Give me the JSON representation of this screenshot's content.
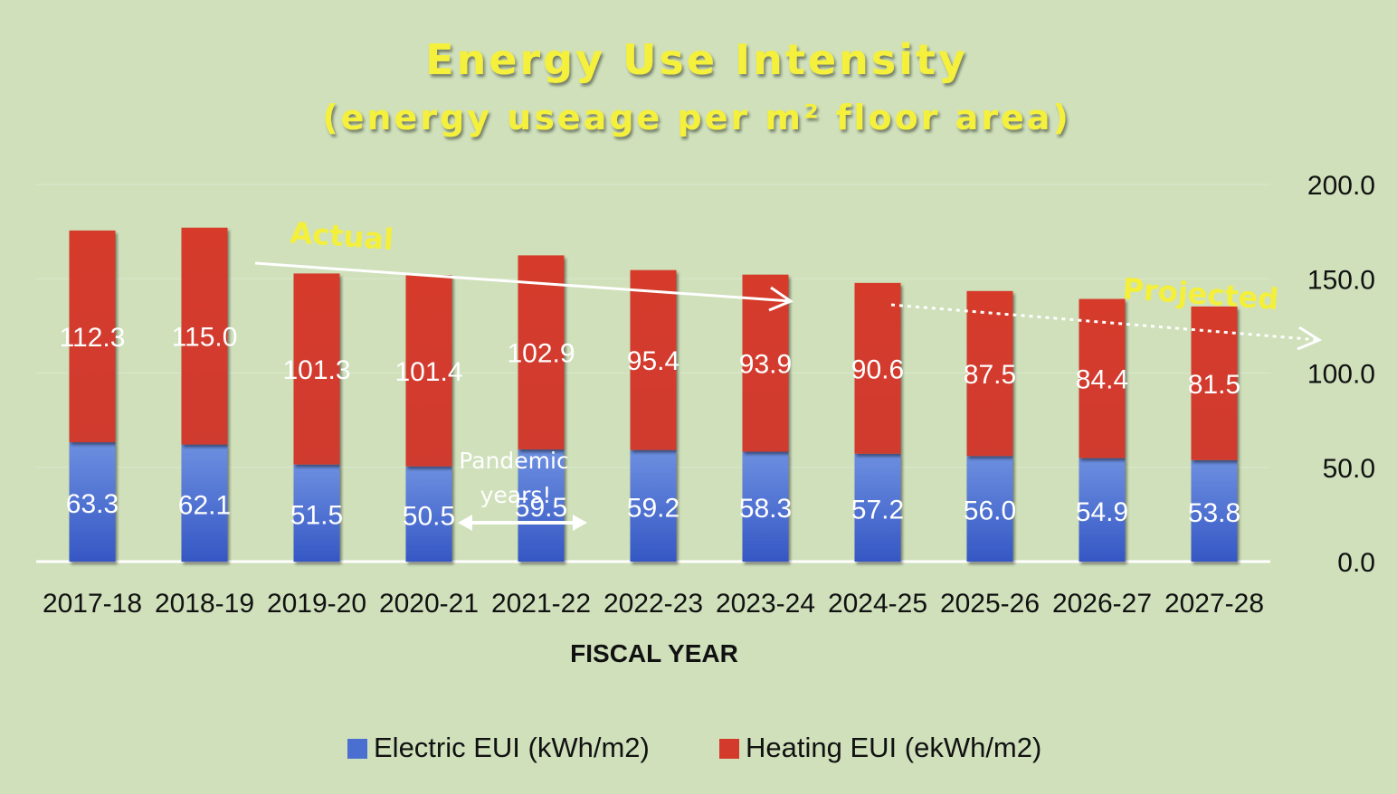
{
  "chart_data": {
    "type": "bar",
    "stacked": true,
    "title": "Energy Use Intensity",
    "subtitle": "(energy useage per m² floor area)",
    "xlabel": "FISCAL YEAR",
    "ylabel": "",
    "ylim": [
      0,
      200
    ],
    "yticks": [
      "0.0",
      "50.0",
      "100.0",
      "150.0",
      "200.0"
    ],
    "yaxis_side": "right",
    "grid": true,
    "legend_position": "bottom",
    "categories": [
      "2017-18",
      "2018-19",
      "2019-20",
      "2020-21",
      "2021-22",
      "2022-23",
      "2023-24",
      "2024-25",
      "2025-26",
      "2026-27",
      "2027-28"
    ],
    "series": [
      {
        "name": "Electric EUI (kWh/m2)",
        "color": "#4a6fd1",
        "values": [
          63.3,
          62.1,
          51.5,
          50.5,
          59.5,
          59.2,
          58.3,
          57.2,
          56.0,
          54.9,
          53.8
        ],
        "labels": [
          "63.3",
          "62.1",
          "51.5",
          "50.5",
          "59.5",
          "59.2",
          "58.3",
          "57.2",
          "56.0",
          "54.9",
          "53.8"
        ]
      },
      {
        "name": "Heating EUI (ekWh/m2)",
        "color": "#d33a2c",
        "values": [
          112.3,
          115.0,
          101.3,
          101.4,
          102.9,
          95.4,
          93.9,
          90.6,
          87.5,
          84.4,
          81.5
        ],
        "labels": [
          "112.3",
          "115.0",
          "101.3",
          "101.4",
          "102.9",
          "95.4",
          "93.9",
          "90.6",
          "87.5",
          "84.4",
          "81.5"
        ]
      }
    ],
    "annotations": {
      "actual": "Actual",
      "projected": "Projected",
      "pandemic_line1": "Pandemic",
      "pandemic_line2": "years!"
    }
  }
}
